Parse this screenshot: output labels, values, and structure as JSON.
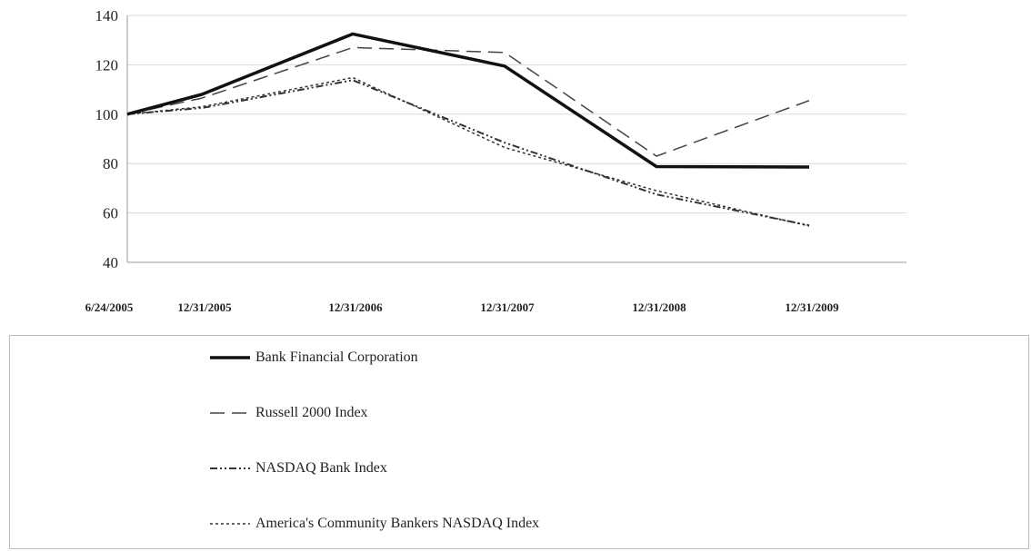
{
  "chart_data": {
    "type": "line",
    "title": "",
    "xlabel": "",
    "ylabel": "",
    "categories": [
      "6/24/2005",
      "12/31/2005",
      "12/31/2006",
      "12/31/2007",
      "12/31/2008",
      "12/31/2009"
    ],
    "ylim": [
      40,
      140
    ],
    "yticks": [
      40,
      60,
      80,
      100,
      120,
      140
    ],
    "grid": true,
    "legend_position": "bottom",
    "series": [
      {
        "name": "Bank Financial Corporation",
        "values": [
          100,
          108,
          132.5,
          119.5,
          78.8,
          78.6
        ],
        "style": "solid-thick",
        "color": "#111111"
      },
      {
        "name": "Russell 2000 Index",
        "values": [
          100,
          106.5,
          127,
          125,
          83,
          105.5
        ],
        "style": "long-dash",
        "color": "#444444"
      },
      {
        "name": "NASDAQ Bank Index",
        "values": [
          100,
          102.5,
          113.8,
          88.5,
          67.5,
          55
        ],
        "style": "dash-dot",
        "color": "#333333"
      },
      {
        "name": "America's Community Bankers NASDAQ Index",
        "values": [
          100,
          103,
          114.8,
          86.5,
          69,
          54.7
        ],
        "style": "dotted",
        "color": "#333333"
      }
    ]
  }
}
